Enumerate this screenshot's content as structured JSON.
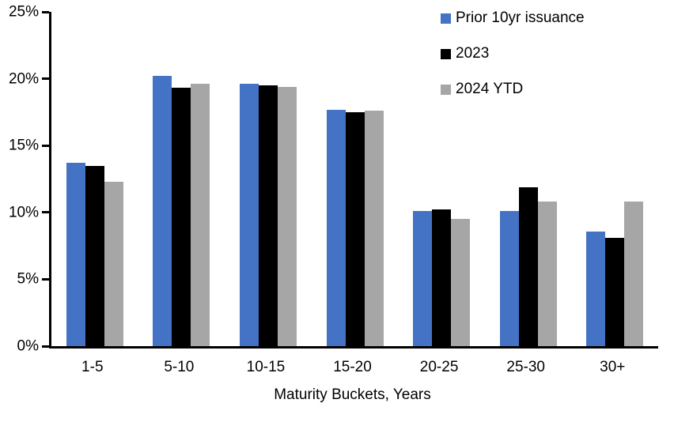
{
  "chart_data": {
    "type": "bar",
    "title": "",
    "categories": [
      "1-5",
      "5-10",
      "10-15",
      "15-20",
      "20-25",
      "25-30",
      "30+"
    ],
    "series": [
      {
        "name": "Prior 10yr issuance",
        "color": "#4472C4",
        "values": [
          13.7,
          20.2,
          19.6,
          17.7,
          10.1,
          10.1,
          8.6
        ]
      },
      {
        "name": "2023",
        "color": "#000000",
        "values": [
          13.5,
          19.3,
          19.5,
          17.5,
          10.2,
          11.9,
          8.1
        ]
      },
      {
        "name": "2024 YTD",
        "color": "#A6A6A6",
        "values": [
          12.3,
          19.6,
          19.4,
          17.6,
          9.5,
          10.8,
          10.8
        ]
      }
    ],
    "xlabel": "Maturity Buckets, Years",
    "ylabel": "",
    "ylim": [
      0,
      25
    ],
    "ytick_step": 5,
    "yticks": [
      0,
      5,
      10,
      15,
      20,
      25
    ],
    "ytick_labels": [
      "0%",
      "5%",
      "10%",
      "15%",
      "20%",
      "25%"
    ],
    "grid": false,
    "legend_position": "top-right",
    "axis_color": "#000000",
    "background_color": "#FFFFFF"
  }
}
